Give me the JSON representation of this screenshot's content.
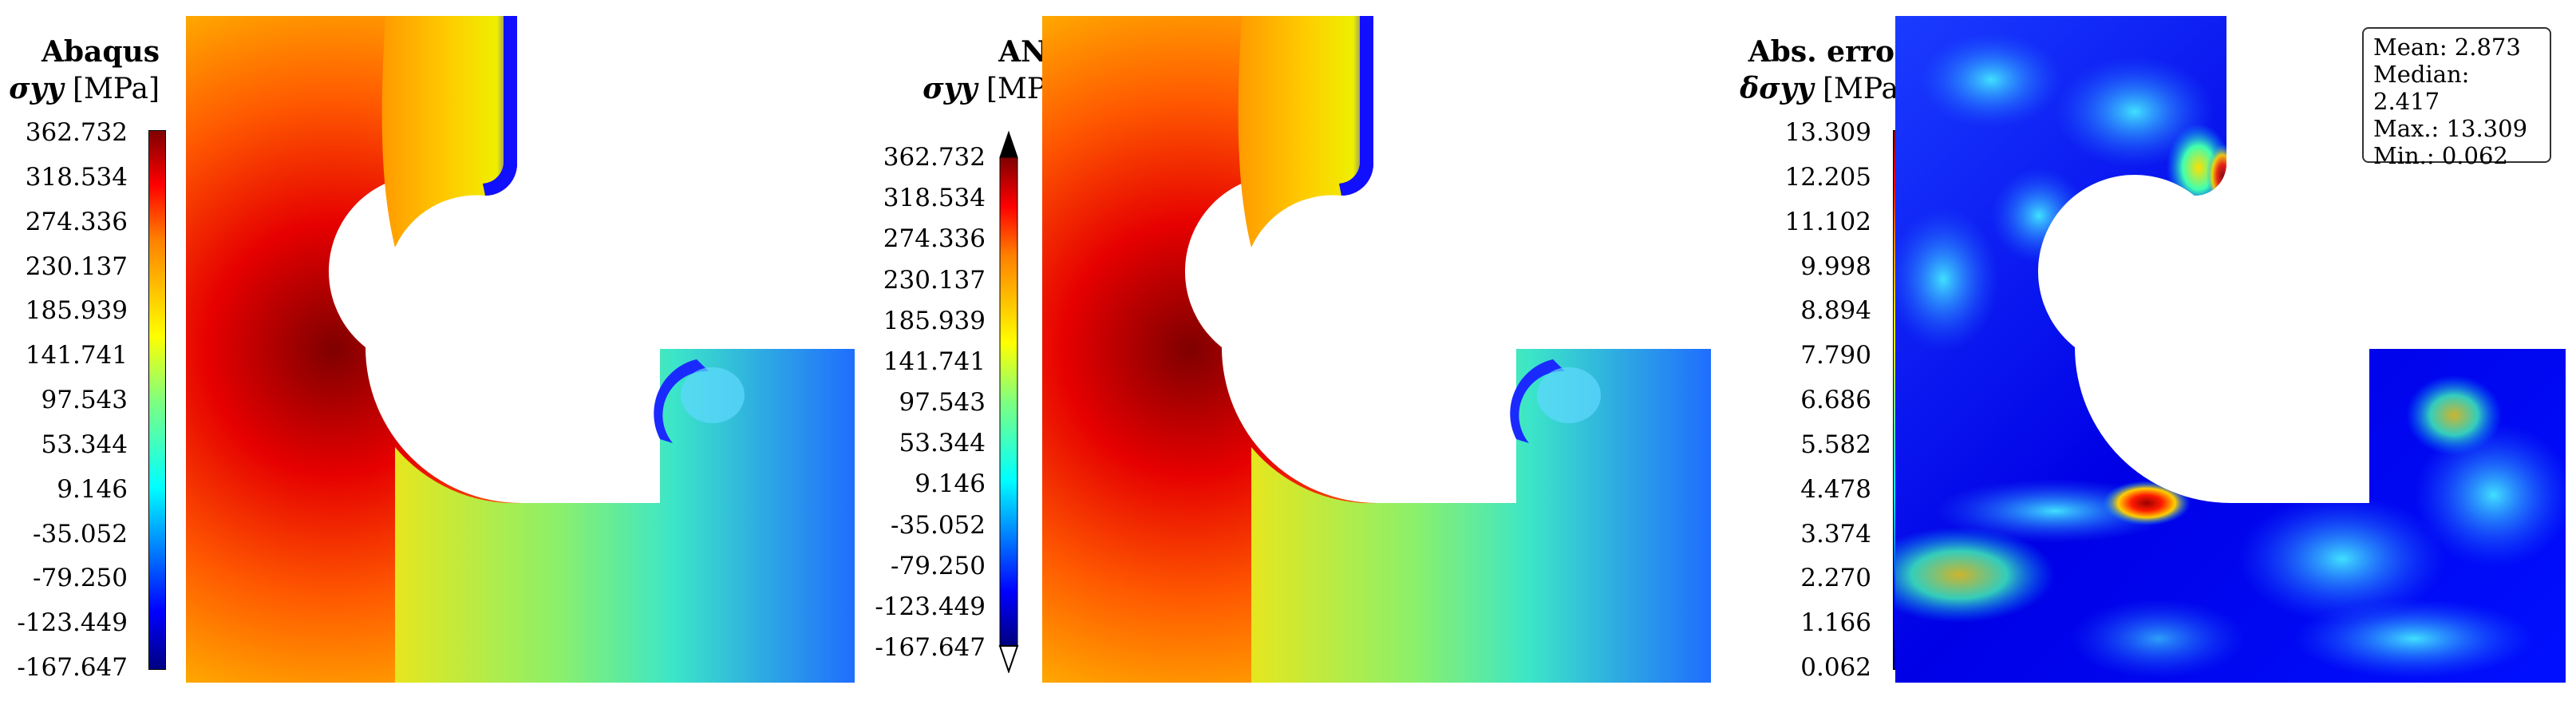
{
  "panels": [
    {
      "title": "Abaqus",
      "quantity": "σyy",
      "unit": "[MPa]",
      "ticks": [
        "362.732",
        "318.534",
        "274.336",
        "230.137",
        "185.939",
        "141.741",
        "97.543",
        "53.344",
        "9.146",
        "-35.052",
        "-79.250",
        "-123.449",
        "-167.647"
      ]
    },
    {
      "title": "ANN",
      "quantity": "σyy",
      "unit": "[MPa]",
      "ticks": [
        "362.732",
        "318.534",
        "274.336",
        "230.137",
        "185.939",
        "141.741",
        "97.543",
        "53.344",
        "9.146",
        "-35.052",
        "-79.250",
        "-123.449",
        "-167.647"
      ]
    },
    {
      "title": "Abs. error",
      "quantity": "δσyy",
      "unit": "[MPa]",
      "ticks": [
        "13.309",
        "12.205",
        "11.102",
        "9.998",
        "8.894",
        "7.790",
        "6.686",
        "5.582",
        "4.478",
        "3.374",
        "2.270",
        "1.166",
        "0.062"
      ]
    }
  ],
  "stats": {
    "mean": "Mean: 2.873",
    "median": "Median: 2.417",
    "max": "Max.: 13.309",
    "min": "Min.: 0.062"
  },
  "colors": {
    "jet": [
      "#00007f",
      "#0000ff",
      "#007fff",
      "#00ffff",
      "#7fff7f",
      "#ffff00",
      "#ff7f00",
      "#ff0000",
      "#7f0000"
    ]
  }
}
